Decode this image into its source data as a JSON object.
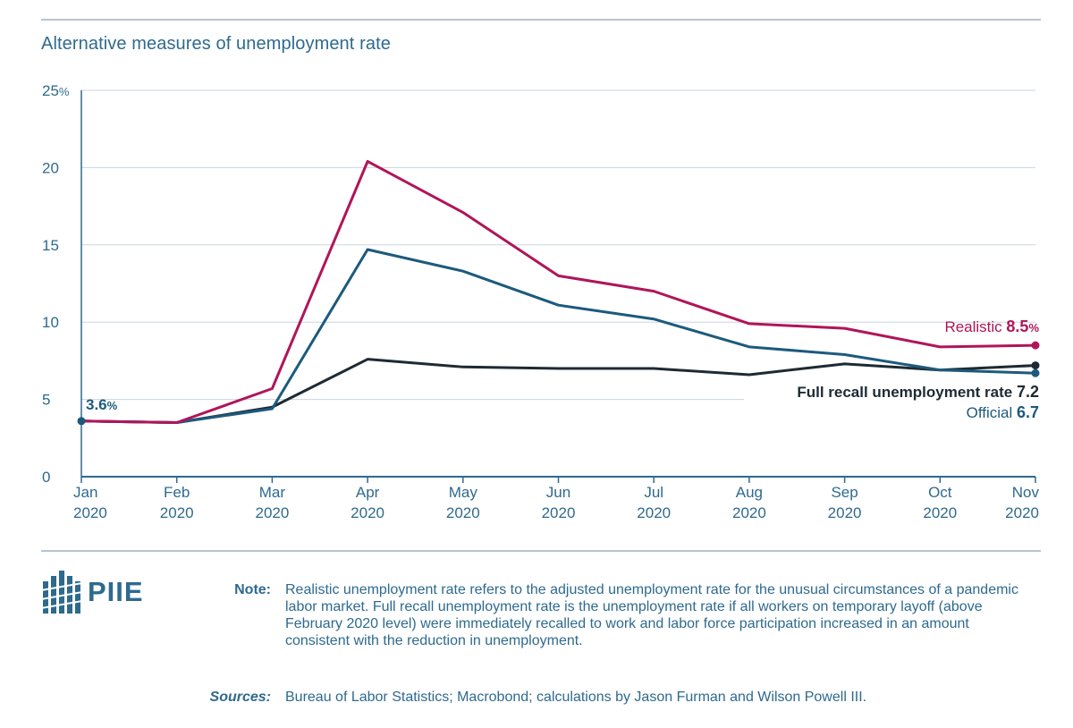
{
  "title": "Alternative measures of unemployment rate",
  "chart_data": {
    "type": "line",
    "title": "Alternative measures of unemployment rate",
    "xlabel": "",
    "ylabel": "",
    "ylim": [
      0,
      25
    ],
    "yticks": [
      "0",
      "5",
      "10",
      "15",
      "20",
      "25"
    ],
    "y_unit": "%",
    "grid": true,
    "categories": [
      {
        "month": "Jan",
        "year": "2020"
      },
      {
        "month": "Feb",
        "year": "2020"
      },
      {
        "month": "Mar",
        "year": "2020"
      },
      {
        "month": "Apr",
        "year": "2020"
      },
      {
        "month": "May",
        "year": "2020"
      },
      {
        "month": "Jun",
        "year": "2020"
      },
      {
        "month": "Jul",
        "year": "2020"
      },
      {
        "month": "Aug",
        "year": "2020"
      },
      {
        "month": "Sep",
        "year": "2020"
      },
      {
        "month": "Oct",
        "year": "2020"
      },
      {
        "month": "Nov",
        "year": "2020"
      }
    ],
    "series": [
      {
        "name": "Realistic",
        "color": "#b0155a",
        "end_label": "8.5",
        "end_unit": "%",
        "values": [
          3.6,
          3.5,
          5.7,
          20.4,
          17.1,
          13.0,
          12.0,
          9.9,
          9.6,
          8.4,
          8.5
        ]
      },
      {
        "name": "Official",
        "color": "#1c5a7d",
        "end_label": "6.7",
        "end_unit": "",
        "values": [
          3.6,
          3.5,
          4.4,
          14.7,
          13.3,
          11.1,
          10.2,
          8.4,
          7.9,
          6.9,
          6.7
        ]
      },
      {
        "name": "Full recall unemployment rate",
        "color": "#1e2a33",
        "end_label": "7.2",
        "end_unit": "",
        "values": [
          3.6,
          3.5,
          4.5,
          7.6,
          7.1,
          7.0,
          7.0,
          6.6,
          7.3,
          6.9,
          7.2
        ]
      }
    ],
    "start_annotation": {
      "value": "3.6",
      "unit": "%"
    }
  },
  "footer": {
    "logo_text": "PIIE",
    "note_label": "Note:",
    "note_text": "Realistic unemployment rate refers to the adjusted unemployment rate for the unusual circumstances of a pandemic labor market. Full recall unemployment rate is the unemployment rate if all workers on temporary layoff (above February 2020 level) were immediately recalled to work and labor force participation increased in an amount consistent with the reduction in unemployment.",
    "sources_label": "Sources:",
    "sources_text": "Bureau of Labor Statistics; Macrobond; calculations by Jason Furman and Wilson Powell III."
  },
  "colors": {
    "accent": "#2e6a8e",
    "grid": "#c9d5df",
    "axis": "#2e6a8e"
  }
}
